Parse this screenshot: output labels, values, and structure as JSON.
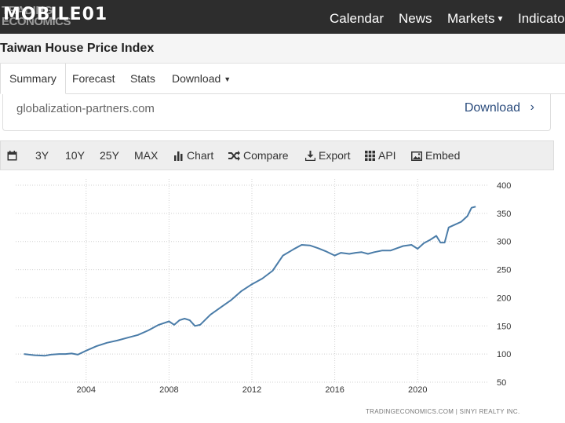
{
  "header": {
    "logo_line1": "TRADING",
    "logo_line2": "ECONOMICS",
    "watermark": "MOBILE01",
    "nav": [
      {
        "label": "Calendar",
        "dropdown": false
      },
      {
        "label": "News",
        "dropdown": false
      },
      {
        "label": "Markets",
        "dropdown": true
      },
      {
        "label": "Indicato",
        "dropdown": false
      }
    ]
  },
  "page": {
    "title": "Taiwan House Price Index"
  },
  "tabs": [
    {
      "label": "Summary",
      "active": true
    },
    {
      "label": "Forecast",
      "active": false
    },
    {
      "label": "Stats",
      "active": false
    },
    {
      "label": "Download",
      "active": false,
      "dropdown": true
    }
  ],
  "source": {
    "text": "globalization-partners.com",
    "download_label": "Download"
  },
  "toolbar": {
    "ranges": [
      "3Y",
      "10Y",
      "25Y",
      "MAX"
    ],
    "chart_label": "Chart",
    "compare_label": "Compare",
    "export_label": "Export",
    "api_label": "API",
    "embed_label": "Embed"
  },
  "chart_data": {
    "type": "line",
    "title": "",
    "xlabel": "",
    "ylabel": "",
    "x_ticks": [
      "2004",
      "2008",
      "2012",
      "2016",
      "2020"
    ],
    "y_ticks": [
      50,
      100,
      150,
      200,
      250,
      300,
      350,
      400
    ],
    "ylim": [
      50,
      400
    ],
    "xlim": [
      2000.6,
      2023.4
    ],
    "grid": true,
    "line_color": "#4a7ca8",
    "credit": "TRADINGECONOMICS.COM | SINYI REALTY INC.",
    "series": [
      {
        "x": [
          2001.0,
          2001.5,
          2002.0,
          2002.3,
          2002.7,
          2003.0,
          2003.3,
          2003.6,
          2004.0,
          2004.5,
          2005.0,
          2005.5,
          2006.0,
          2006.5,
          2007.0,
          2007.5,
          2008.0,
          2008.25,
          2008.5,
          2008.75,
          2009.0,
          2009.25,
          2009.5,
          2010.0,
          2010.5,
          2011.0,
          2011.5,
          2012.0,
          2012.5,
          2013.0,
          2013.5,
          2014.0,
          2014.4,
          2014.8,
          2015.2,
          2015.6,
          2016.0,
          2016.3,
          2016.7,
          2017.0,
          2017.3,
          2017.6,
          2017.9,
          2018.3,
          2018.7,
          2019.0,
          2019.3,
          2019.7,
          2020.0,
          2020.3,
          2020.6,
          2020.9,
          2021.1,
          2021.3,
          2021.5,
          2021.8,
          2022.1,
          2022.4,
          2022.6,
          2022.8
        ],
        "y": [
          100,
          98,
          97,
          99,
          100,
          100,
          101,
          99,
          106,
          114,
          120,
          124,
          129,
          134,
          142,
          152,
          158,
          152,
          160,
          163,
          160,
          150,
          152,
          170,
          183,
          196,
          212,
          224,
          234,
          248,
          275,
          286,
          294,
          293,
          288,
          282,
          275,
          280,
          278,
          280,
          281,
          278,
          281,
          284,
          284,
          288,
          292,
          294,
          287,
          297,
          303,
          310,
          298,
          298,
          325,
          330,
          335,
          345,
          360,
          362
        ]
      }
    ]
  }
}
